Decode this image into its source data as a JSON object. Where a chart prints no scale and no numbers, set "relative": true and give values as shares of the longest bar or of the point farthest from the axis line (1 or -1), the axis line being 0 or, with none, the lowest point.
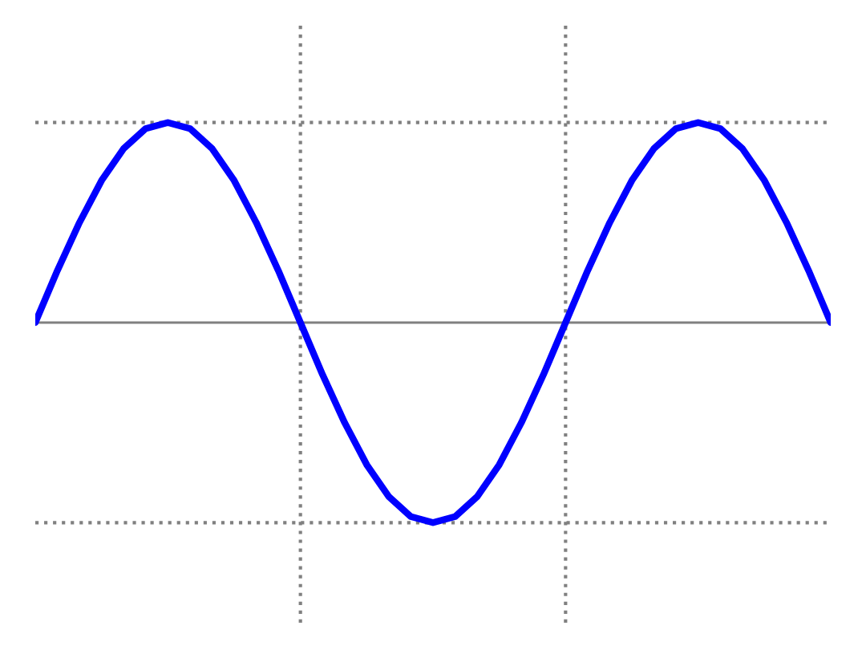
{
  "chart_data": {
    "type": "line",
    "relative": true,
    "categories": [
      null,
      null,
      null,
      null,
      null,
      null,
      null,
      null,
      null,
      null,
      null,
      null,
      null,
      null,
      null,
      null,
      null,
      null,
      null,
      null,
      null,
      null,
      null,
      null,
      null,
      null,
      null,
      null,
      null,
      null,
      null,
      null,
      null,
      null,
      null,
      null,
      null
    ],
    "series": [
      {
        "color": "#0000ff",
        "values": [
          0,
          0.26,
          0.5,
          0.71,
          0.87,
          0.97,
          1,
          0.97,
          0.87,
          0.71,
          0.5,
          0.26,
          0,
          -0.26,
          -0.5,
          -0.71,
          -0.87,
          -0.97,
          -1,
          -0.97,
          -0.87,
          -0.71,
          -0.5,
          -0.26,
          0,
          0.26,
          0.5,
          0.71,
          0.87,
          0.97,
          1,
          0.97,
          0.87,
          0.71,
          0.5,
          0.26,
          0
        ]
      }
    ],
    "grid": false,
    "legend": false,
    "marker": "none",
    "line_style": "solid"
  }
}
